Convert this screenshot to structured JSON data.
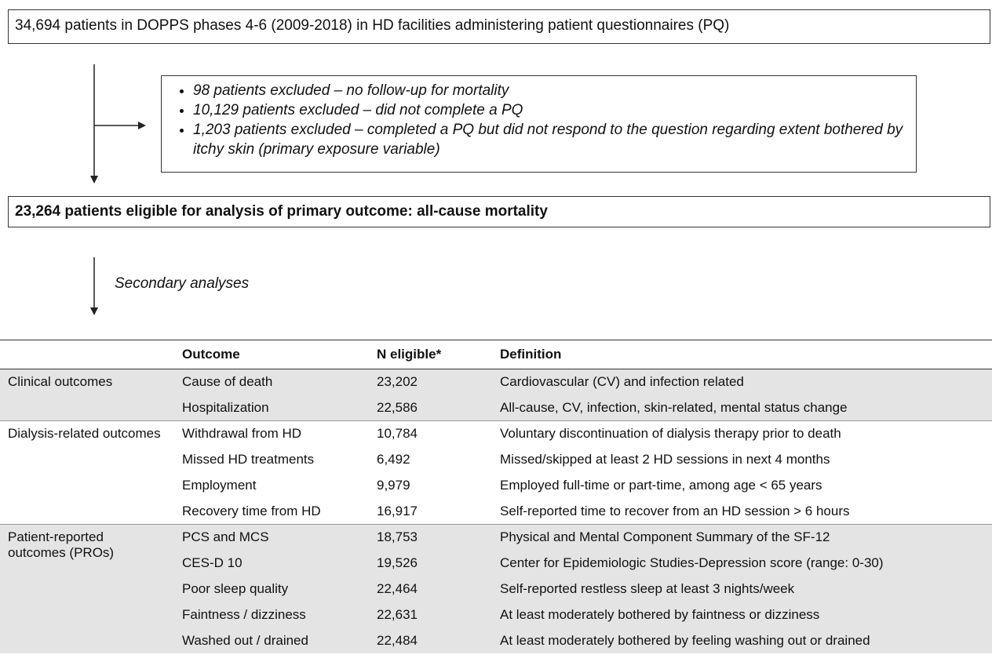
{
  "top_box": "34,694 patients in DOPPS phases 4-6 (2009-2018) in HD facilities administering patient questionnaires (PQ)",
  "exclusions": [
    "98 patients excluded – no follow-up for mortality",
    "10,129 patients excluded – did not complete a PQ",
    "1,203 patients excluded – completed a PQ but did not respond to the question regarding extent bothered by itchy skin (primary exposure variable)"
  ],
  "eligible_box": "23,264 patients eligible for analysis of primary outcome: all-cause mortality",
  "secondary_label": "Secondary analyses",
  "table": {
    "headers": [
      "Outcome",
      "N eligible*",
      "Definition"
    ],
    "groups": [
      {
        "name": "Clinical outcomes",
        "rows": [
          [
            "Cause of death",
            "23,202",
            "Cardiovascular (CV) and infection related"
          ],
          [
            "Hospitalization",
            "22,586",
            "All-cause, CV, infection, skin-related, mental status change"
          ]
        ]
      },
      {
        "name": "Dialysis-related outcomes",
        "rows": [
          [
            "Withdrawal from HD",
            "10,784",
            "Voluntary discontinuation of dialysis therapy prior to death"
          ],
          [
            "Missed HD treatments",
            "6,492",
            "Missed/skipped at least 2 HD sessions in next 4 months"
          ],
          [
            "Employment",
            "9,979",
            "Employed full-time or part-time, among age < 65 years"
          ],
          [
            "Recovery time from HD",
            "16,917",
            "Self-reported time to recover from an HD session > 6 hours"
          ]
        ]
      },
      {
        "name": "Patient-reported outcomes (PROs)",
        "rows": [
          [
            "PCS and MCS",
            "18,753",
            "Physical and Mental Component Summary of the SF-12"
          ],
          [
            "CES-D 10",
            "19,526",
            "Center for Epidemiologic Studies-Depression score (range: 0-30)"
          ],
          [
            "Poor sleep quality",
            "22,464",
            "Self-reported restless sleep at least 3 nights/week"
          ],
          [
            "Faintness / dizziness",
            "22,631",
            "At least moderately bothered by faintness or dizziness"
          ],
          [
            "Washed out / drained",
            "22,484",
            "At least moderately bothered by feeling washing out or drained"
          ]
        ]
      }
    ]
  }
}
